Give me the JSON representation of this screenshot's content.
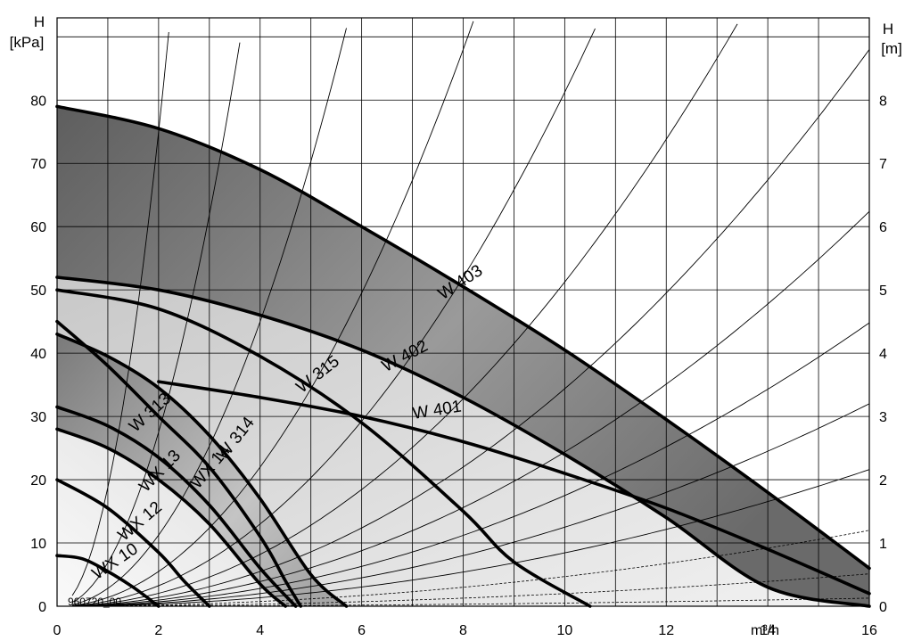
{
  "chart_data": {
    "type": "line",
    "x_unit_label": "m³/h",
    "y_left_title": [
      "H",
      "[kPa]"
    ],
    "y_right_title": [
      "H",
      "[m]"
    ],
    "xlim": [
      0,
      16
    ],
    "ylim_left": [
      0,
      93
    ],
    "ylim_right": [
      0,
      9.3
    ],
    "x_ticks": [
      0,
      2,
      4,
      6,
      8,
      10,
      12,
      14,
      16
    ],
    "y_left_ticks": [
      0,
      10,
      20,
      30,
      40,
      50,
      60,
      70,
      80
    ],
    "y_right_ticks": [
      0,
      1,
      2,
      3,
      4,
      5,
      6,
      7,
      8
    ],
    "grid": true,
    "code_text": "960720_00",
    "colors": {
      "curve": "#000000",
      "shade_dark": "#6e6e6e",
      "shade_light": "#f4f4f4",
      "grid": "#000000"
    },
    "series": [
      {
        "name": "W 403",
        "x": [
          0,
          2,
          4,
          6,
          8,
          10,
          12,
          14,
          16
        ],
        "y": [
          79,
          75.5,
          69,
          60,
          50.5,
          40.5,
          29.5,
          18,
          6
        ]
      },
      {
        "name": "W 402",
        "x": [
          0,
          2,
          4,
          6,
          8,
          10,
          12,
          14,
          16
        ],
        "y": [
          52,
          50,
          46,
          40.5,
          33,
          24,
          14,
          3,
          0
        ]
      },
      {
        "name": "W 401",
        "x": [
          2,
          4,
          6,
          8,
          10,
          12,
          14,
          16
        ],
        "y": [
          35.5,
          33,
          30,
          26,
          21,
          15.5,
          9,
          2
        ]
      },
      {
        "name": "W 315",
        "x": [
          0,
          2,
          4,
          6,
          8,
          9,
          10.5
        ],
        "y": [
          50,
          47,
          39.5,
          29,
          15,
          7,
          0
        ]
      },
      {
        "name": "W 314",
        "x": [
          0,
          1,
          2,
          3,
          4,
          5,
          5.7
        ],
        "y": [
          43,
          39.5,
          34.5,
          27,
          17,
          5,
          0
        ]
      },
      {
        "name": "W 313",
        "x": [
          0,
          1,
          2,
          3,
          4,
          4.5,
          4.8
        ],
        "y": [
          45,
          38,
          30,
          22,
          11,
          4,
          0
        ]
      },
      {
        "name": "WX 14",
        "x": [
          0,
          1,
          2,
          3,
          4,
          4.7
        ],
        "y": [
          31.5,
          28.5,
          23.5,
          16,
          6,
          0
        ]
      },
      {
        "name": "WX 13",
        "x": [
          0,
          1,
          2,
          3,
          4,
          4.5
        ],
        "y": [
          28,
          25,
          20,
          13,
          3.5,
          0
        ]
      },
      {
        "name": "WX 12",
        "x": [
          0,
          1,
          2,
          2.5,
          3
        ],
        "y": [
          20,
          15.5,
          8.5,
          4,
          0
        ]
      },
      {
        "name": "WX 10",
        "x": [
          0,
          0.5,
          1,
          1.5,
          2
        ],
        "y": [
          8,
          7.5,
          5.5,
          3,
          0
        ]
      }
    ]
  }
}
